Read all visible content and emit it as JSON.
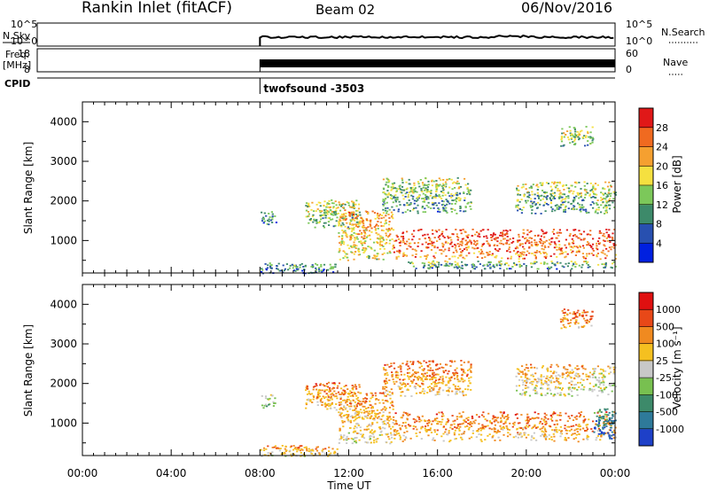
{
  "header": {
    "station": "Rankin Inlet (fitACF)",
    "beam": "Beam 02",
    "date": "06/Nov/2016"
  },
  "panels": {
    "noise": {
      "left_label": "N.Sky",
      "right_label": "N.Search",
      "left_ticks": [
        "10^5",
        "10^0"
      ],
      "right_ticks": [
        "10^5",
        "10^0"
      ]
    },
    "freq": {
      "left_label_line1": "Freq.",
      "left_label_line2": "[MHz]",
      "right_label": "Nave",
      "left_ticks": [
        "18",
        "8"
      ],
      "right_ticks": [
        "60",
        "0"
      ]
    },
    "cpid": {
      "label": "CPID",
      "program": "twofsound -3503"
    }
  },
  "axes": {
    "ylabel": "Slant Range [km]",
    "xlabel": "Time UT",
    "yticks": [
      "4000",
      "3000",
      "2000",
      "1000"
    ],
    "xticks": [
      "00:00",
      "04:00",
      "08:00",
      "12:00",
      "16:00",
      "20:00",
      "00:00"
    ]
  },
  "colorbars": {
    "power": {
      "label": "Power [dB]",
      "ticks": [
        "28",
        "24",
        "20",
        "16",
        "12",
        "8",
        "4"
      ],
      "colors": [
        "#0020e0",
        "#2850b0",
        "#3d8a6a",
        "#7cc85a",
        "#f5e040",
        "#f5a030",
        "#f06a20",
        "#e01818"
      ]
    },
    "velocity": {
      "label": "Velocity [m s⁻¹]",
      "ticks": [
        "1000",
        "500",
        "100",
        "25",
        "-25",
        "-100",
        "-500",
        "-1000"
      ],
      "colors": [
        "#1e40c8",
        "#2e7a9a",
        "#3d8a6a",
        "#78c050",
        "#c8c8c8",
        "#f5c020",
        "#f08a20",
        "#e84818",
        "#e01010"
      ]
    }
  },
  "chart_data": [
    {
      "type": "line",
      "name": "noise",
      "x_range_hours": [
        0,
        24
      ],
      "data_start_hour": 8,
      "ylim_log10": [
        0,
        5
      ]
    },
    {
      "type": "line",
      "name": "frequency",
      "x_range_hours": [
        0,
        24
      ],
      "data_start_hour": 8,
      "ylim": [
        8,
        18
      ]
    },
    {
      "type": "heatmap",
      "name": "power",
      "x_range_hours": [
        0,
        24
      ],
      "ylim": [
        180,
        4500
      ],
      "zlim": [
        0,
        32
      ],
      "scatter_regions": [
        {
          "t": [
            8.0,
            8.7
          ],
          "r": [
            1400,
            1750
          ],
          "level": 0.3
        },
        {
          "t": [
            10.0,
            12.5
          ],
          "r": [
            1350,
            2050
          ],
          "level": 0.45
        },
        {
          "t": [
            11.5,
            14.0
          ],
          "r": [
            500,
            1800
          ],
          "level": 0.65
        },
        {
          "t": [
            14.0,
            24.0
          ],
          "r": [
            550,
            1300
          ],
          "level": 0.85
        },
        {
          "t": [
            13.5,
            17.5
          ],
          "r": [
            1700,
            2600
          ],
          "level": 0.4
        },
        {
          "t": [
            19.5,
            23.0
          ],
          "r": [
            1700,
            2500
          ],
          "level": 0.4
        },
        {
          "t": [
            21.5,
            23.0
          ],
          "r": [
            3400,
            3900
          ],
          "level": 0.45
        },
        {
          "t": [
            23.0,
            24.0
          ],
          "r": [
            1700,
            2500
          ],
          "level": 0.5
        },
        {
          "t": [
            14.5,
            24.0
          ],
          "r": [
            300,
            500
          ],
          "level": 0.35
        },
        {
          "t": [
            8.0,
            11.5
          ],
          "r": [
            180,
            450
          ],
          "level": 0.25
        }
      ]
    },
    {
      "type": "heatmap",
      "name": "velocity",
      "x_range_hours": [
        0,
        24
      ],
      "ylim": [
        180,
        4500
      ],
      "zlim": [
        -1000,
        1000
      ],
      "scatter_regions": [
        {
          "t": [
            8.0,
            8.7
          ],
          "r": [
            1400,
            1750
          ],
          "level": 0.4
        },
        {
          "t": [
            10.0,
            12.5
          ],
          "r": [
            1350,
            2050
          ],
          "level": 0.7
        },
        {
          "t": [
            11.5,
            14.0
          ],
          "r": [
            500,
            1800
          ],
          "level": 0.65
        },
        {
          "t": [
            14.0,
            24.0
          ],
          "r": [
            550,
            1300
          ],
          "level": 0.72
        },
        {
          "t": [
            13.5,
            17.5
          ],
          "r": [
            1700,
            2600
          ],
          "level": 0.72
        },
        {
          "t": [
            19.5,
            23.0
          ],
          "r": [
            1700,
            2500
          ],
          "level": 0.6
        },
        {
          "t": [
            21.5,
            23.0
          ],
          "r": [
            3400,
            3900
          ],
          "level": 0.75
        },
        {
          "t": [
            23.0,
            24.0
          ],
          "r": [
            1700,
            2500
          ],
          "level": 0.5
        },
        {
          "t": [
            23.0,
            24.0
          ],
          "r": [
            600,
            1400
          ],
          "level": 0.15
        },
        {
          "t": [
            8.0,
            11.5
          ],
          "r": [
            180,
            450
          ],
          "level": 0.65
        }
      ]
    }
  ]
}
